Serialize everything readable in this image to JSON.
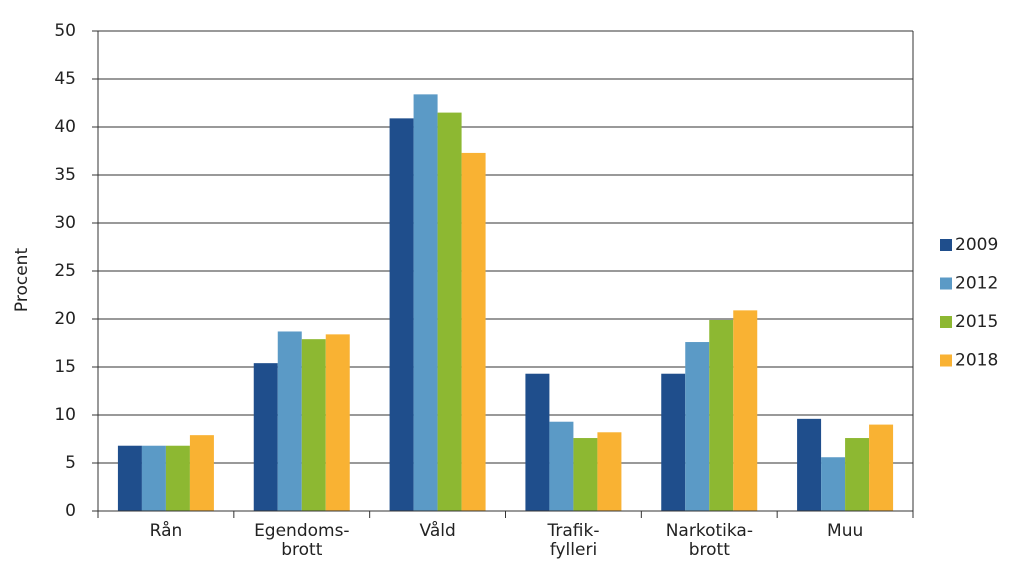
{
  "chart_data": {
    "type": "bar",
    "y_label": "Procent",
    "categories": [
      "Rån",
      "Egendoms-\nbrott",
      "Våld",
      "Trafik-\nfylleri",
      "Narkotika-\nbrott",
      "Muu"
    ],
    "series": [
      {
        "name": "2009",
        "color": "#1f4e8c",
        "values": [
          6.8,
          15.4,
          40.9,
          14.3,
          14.3,
          9.6
        ]
      },
      {
        "name": "2012",
        "color": "#5b9ac6",
        "values": [
          6.8,
          18.7,
          43.4,
          9.3,
          17.6,
          5.6
        ]
      },
      {
        "name": "2015",
        "color": "#8db832",
        "values": [
          6.8,
          17.9,
          41.5,
          7.6,
          19.9,
          7.6
        ]
      },
      {
        "name": "2018",
        "color": "#f9b233",
        "values": [
          7.9,
          18.4,
          37.3,
          8.2,
          20.9,
          9.0
        ]
      }
    ],
    "ylim": [
      0,
      50
    ],
    "yticks": [
      0,
      5,
      10,
      15,
      20,
      25,
      30,
      35,
      40,
      45,
      50
    ],
    "grid": true,
    "legend": "right"
  }
}
